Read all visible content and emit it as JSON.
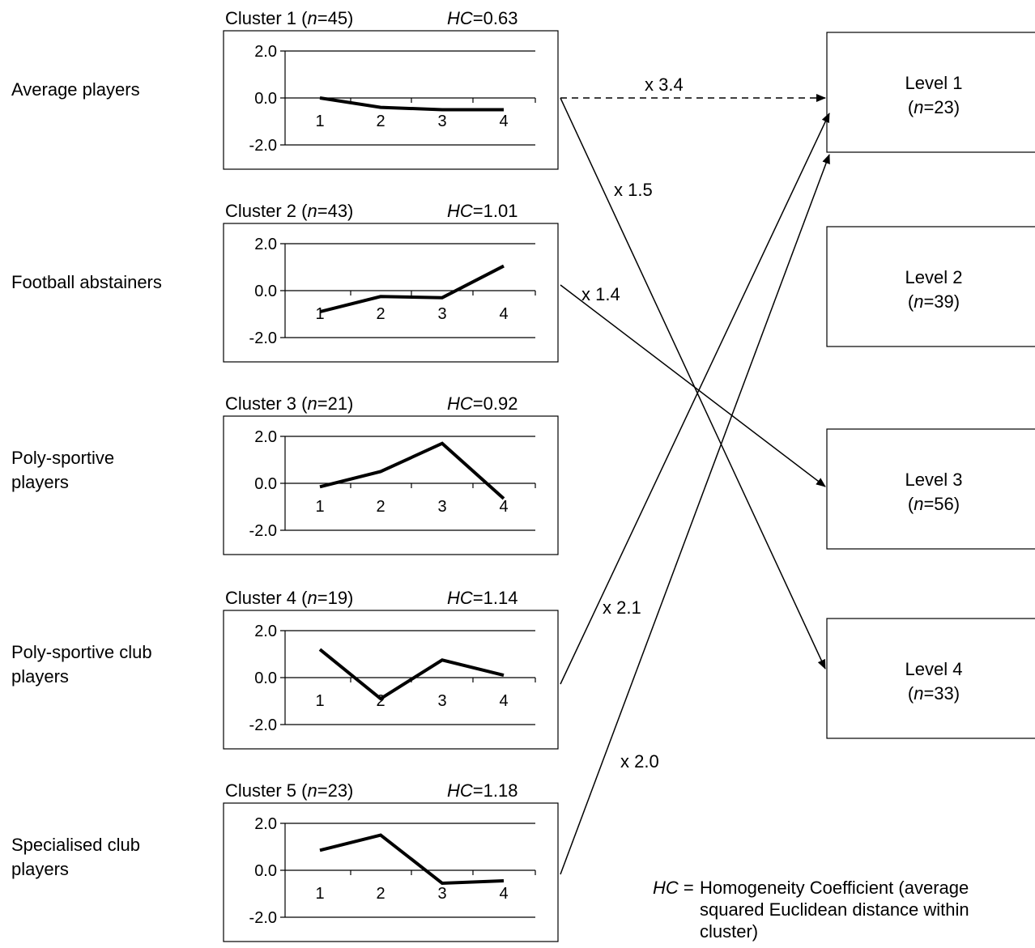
{
  "legend": {
    "abbr": "HC",
    "eq": " = ",
    "line1": "Homogeneity Coefficient (average",
    "line2": "squared Euclidean distance within",
    "line3": "cluster)"
  },
  "clusters": [
    {
      "label_lines": [
        "Average players"
      ],
      "title_prefix": "Cluster 1 (",
      "n_symbol": "n",
      "n_value": "=45)",
      "hc_symbol": "HC",
      "hc_value": "=0.63",
      "x_ticks": [
        "1",
        "2",
        "3",
        "4"
      ],
      "y_ticks": [
        "2.0",
        "0.0",
        "-2.0"
      ],
      "values": [
        0.0,
        -0.4,
        -0.5,
        -0.5
      ]
    },
    {
      "label_lines": [
        "Football abstainers"
      ],
      "title_prefix": "Cluster 2 (",
      "n_symbol": "n",
      "n_value": "=43)",
      "hc_symbol": "HC",
      "hc_value": "=1.01",
      "x_ticks": [
        "1",
        "2",
        "3",
        "4"
      ],
      "y_ticks": [
        "2.0",
        "0.0",
        "-2.0"
      ],
      "values": [
        -0.9,
        -0.25,
        -0.3,
        1.05
      ]
    },
    {
      "label_lines": [
        "Poly-sportive",
        "players"
      ],
      "title_prefix": "Cluster 3 (",
      "n_symbol": "n",
      "n_value": "=21)",
      "hc_symbol": "HC",
      "hc_value": "=0.92",
      "x_ticks": [
        "1",
        "2",
        "3",
        "4"
      ],
      "y_ticks": [
        "2.0",
        "0.0",
        "-2.0"
      ],
      "values": [
        -0.15,
        0.5,
        1.7,
        -0.65
      ]
    },
    {
      "label_lines": [
        "Poly-sportive club",
        "players"
      ],
      "title_prefix": "Cluster 4 (",
      "n_symbol": "n",
      "n_value": "=19)",
      "hc_symbol": "HC",
      "hc_value": "=1.14",
      "x_ticks": [
        "1",
        "2",
        "3",
        "4"
      ],
      "y_ticks": [
        "2.0",
        "0.0",
        "-2.0"
      ],
      "values": [
        1.2,
        -0.9,
        0.75,
        0.1
      ]
    },
    {
      "label_lines": [
        "Specialised club",
        "players"
      ],
      "title_prefix": "Cluster 5 (",
      "n_symbol": "n",
      "n_value": "=23)",
      "hc_symbol": "HC",
      "hc_value": "=1.18",
      "x_ticks": [
        "1",
        "2",
        "3",
        "4"
      ],
      "y_ticks": [
        "2.0",
        "0.0",
        "-2.0"
      ],
      "values": [
        0.85,
        1.5,
        -0.55,
        -0.45
      ]
    }
  ],
  "levels": [
    {
      "prefix": "Level 1",
      "n_open": "(",
      "n_symbol": "n",
      "n_value": "=23)"
    },
    {
      "prefix": "Level 2",
      "n_open": "(",
      "n_symbol": "n",
      "n_value": "=39)"
    },
    {
      "prefix": "Level 3",
      "n_open": "(",
      "n_symbol": "n",
      "n_value": "=56)"
    },
    {
      "prefix": "Level 4",
      "n_open": "(",
      "n_symbol": "n",
      "n_value": "=33)"
    }
  ],
  "arrows": [
    {
      "from": 1,
      "to": 1,
      "factor": "x 3.4",
      "style": "dashed"
    },
    {
      "from": 1,
      "to": 4,
      "factor": "x 1.5",
      "style": "solid"
    },
    {
      "from": 2,
      "to": 3,
      "factor": "x 1.4",
      "style": "solid"
    },
    {
      "from": 4,
      "to": 1,
      "factor": "x 2.1",
      "style": "solid"
    },
    {
      "from": 5,
      "to": 1,
      "factor": "x 2.0",
      "style": "solid"
    }
  ]
}
